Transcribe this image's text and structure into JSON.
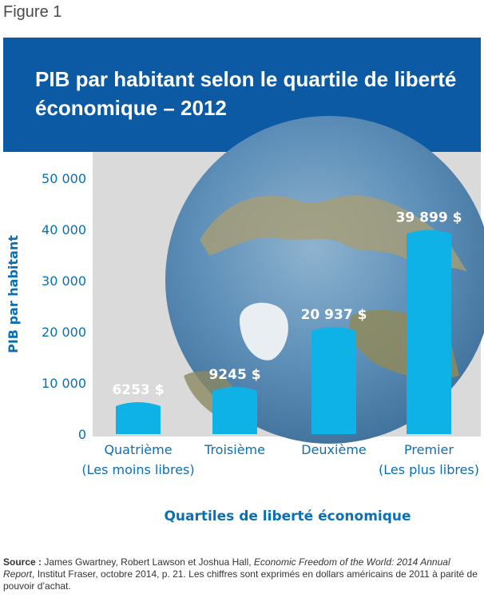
{
  "figure_label": "Figure 1",
  "colors": {
    "banner": "#0b5aa3",
    "bar": "#0fb2e6",
    "axis_text": "#0b6fb4"
  },
  "chart_data": {
    "type": "bar",
    "title": "PIB par habitant selon le quartile de liberté économique – 2012",
    "ylabel": "PIB par habitant",
    "xlabel": "Quartiles de liberté économique",
    "ylim": [
      0,
      50000
    ],
    "yticks": [
      0,
      10000,
      20000,
      30000,
      40000,
      50000
    ],
    "ytick_labels": [
      "0",
      "10 000",
      "20 000",
      "30 000",
      "40 000",
      "50 000"
    ],
    "categories": [
      [
        "Quatrième",
        "(Les moins libres)"
      ],
      [
        "Troisième"
      ],
      [
        "Deuxième"
      ],
      [
        "Premier",
        "(Les plus libres)"
      ]
    ],
    "values": [
      6253,
      9245,
      20937,
      39899
    ],
    "data_labels": [
      "6253 $",
      "9245 $",
      "20 937 $",
      "39 899 $"
    ],
    "grid": false
  },
  "source": {
    "label": "Source :",
    "authors": " James Gwartney, Robert Lawson et Joshua Hall, ",
    "publication": "Economic Freedom of the World: 2014 Annual Report",
    "rest": ", Institut Fraser, octobre 2014, p. 21. Les chiffres sont exprimés en dollars américains de 2011 à parité de pouvoir d’achat."
  }
}
